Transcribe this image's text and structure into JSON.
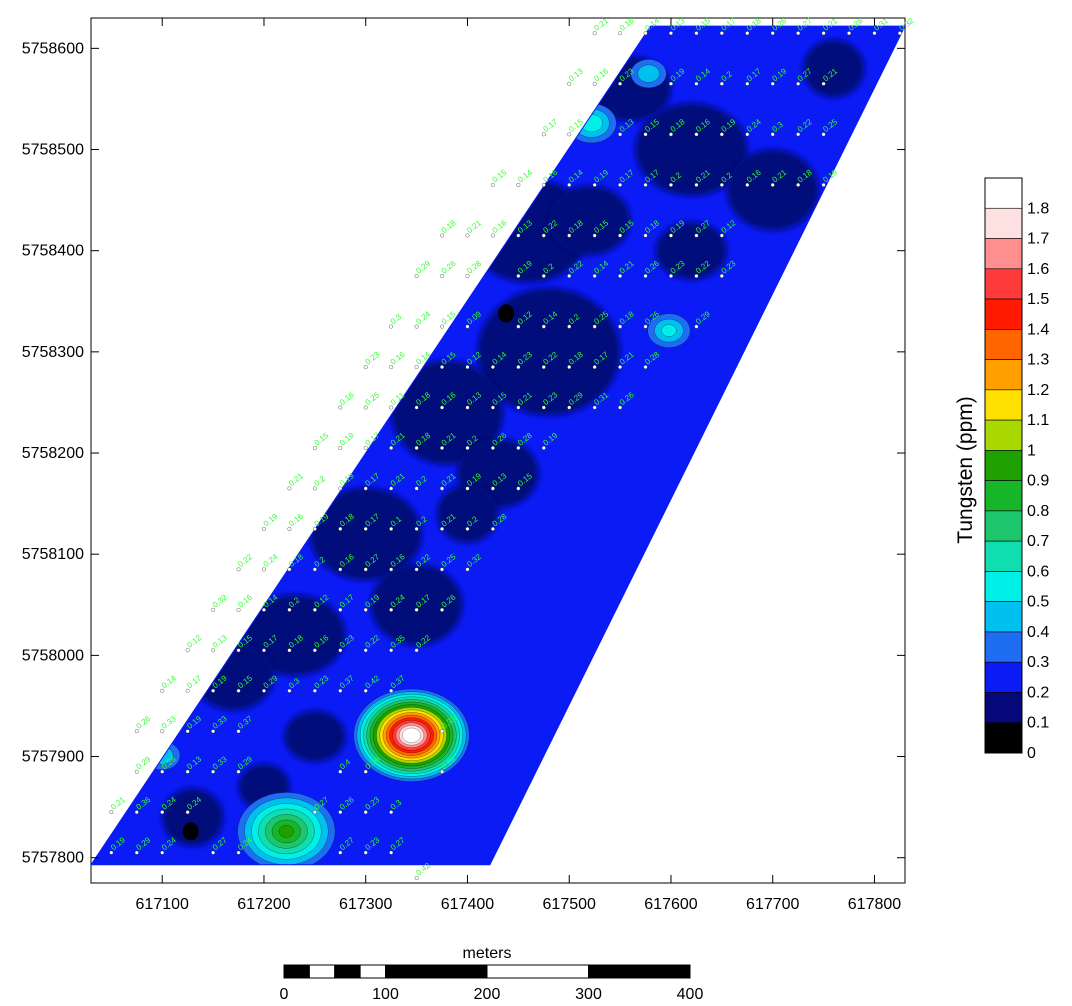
{
  "map": {
    "x_axis": {
      "ticks": [
        617100,
        617200,
        617300,
        617400,
        617500,
        617600,
        617700,
        617800
      ],
      "range": [
        617030,
        617830
      ]
    },
    "y_axis": {
      "ticks": [
        5757800,
        5757900,
        5758000,
        5758100,
        5758200,
        5758300,
        5758400,
        5758500,
        5758600
      ],
      "range": [
        5757775,
        5758630
      ]
    },
    "survey_corners": [
      [
        617030,
        5757793
      ],
      [
        617100,
        5757793
      ],
      [
        617422,
        5757793
      ],
      [
        617830,
        5758622
      ],
      [
        617580,
        5758622
      ]
    ],
    "anomalies": [
      {
        "x": 617345,
        "y": 5757921,
        "peak": 1.85
      },
      {
        "x": 617222,
        "y": 5757826,
        "peak": 0.9
      },
      {
        "x": 617522,
        "y": 5758526,
        "peak": 0.55
      },
      {
        "x": 617598,
        "y": 5758321,
        "peak": 0.5
      },
      {
        "x": 617578,
        "y": 5758575,
        "peak": 0.45
      },
      {
        "x": 617100,
        "y": 5757901,
        "peak": 0.45
      }
    ],
    "lows": [
      {
        "x": 617438,
        "y": 5758338
      },
      {
        "x": 617300,
        "y": 5758248
      },
      {
        "x": 617128,
        "y": 5757826
      }
    ],
    "sample_labels": [
      {
        "x": 617525,
        "y": 5758615,
        "v": "0.21"
      },
      {
        "x": 617550,
        "y": 5758615,
        "v": "0.16"
      },
      {
        "x": 617575,
        "y": 5758615,
        "v": "0.14"
      },
      {
        "x": 617600,
        "y": 5758615,
        "v": "0.13"
      },
      {
        "x": 617625,
        "y": 5758615,
        "v": "0.15"
      },
      {
        "x": 617650,
        "y": 5758615,
        "v": "0.17"
      },
      {
        "x": 617675,
        "y": 5758615,
        "v": "0.18"
      },
      {
        "x": 617700,
        "y": 5758615,
        "v": "0.26"
      },
      {
        "x": 617725,
        "y": 5758615,
        "v": "0.27"
      },
      {
        "x": 617750,
        "y": 5758615,
        "v": "0.21"
      },
      {
        "x": 617775,
        "y": 5758615,
        "v": "0.26"
      },
      {
        "x": 617800,
        "y": 5758615,
        "v": "0.31"
      },
      {
        "x": 617825,
        "y": 5758615,
        "v": "0.32"
      },
      {
        "x": 617500,
        "y": 5758565,
        "v": "0.13"
      },
      {
        "x": 617525,
        "y": 5758565,
        "v": "0.16"
      },
      {
        "x": 617550,
        "y": 5758565,
        "v": "0.23"
      },
      {
        "x": 617600,
        "y": 5758565,
        "v": "0.19"
      },
      {
        "x": 617625,
        "y": 5758565,
        "v": "0.14"
      },
      {
        "x": 617650,
        "y": 5758565,
        "v": "0.2"
      },
      {
        "x": 617675,
        "y": 5758565,
        "v": "0.17"
      },
      {
        "x": 617700,
        "y": 5758565,
        "v": "0.19"
      },
      {
        "x": 617725,
        "y": 5758565,
        "v": "0.27"
      },
      {
        "x": 617750,
        "y": 5758565,
        "v": "0.21"
      },
      {
        "x": 617475,
        "y": 5758515,
        "v": "0.17"
      },
      {
        "x": 617500,
        "y": 5758515,
        "v": "0.15"
      },
      {
        "x": 617550,
        "y": 5758515,
        "v": "0.13"
      },
      {
        "x": 617575,
        "y": 5758515,
        "v": "0.15"
      },
      {
        "x": 617600,
        "y": 5758515,
        "v": "0.18"
      },
      {
        "x": 617625,
        "y": 5758515,
        "v": "0.16"
      },
      {
        "x": 617650,
        "y": 5758515,
        "v": "0.19"
      },
      {
        "x": 617675,
        "y": 5758515,
        "v": "0.24"
      },
      {
        "x": 617700,
        "y": 5758515,
        "v": "0.3"
      },
      {
        "x": 617725,
        "y": 5758515,
        "v": "0.22"
      },
      {
        "x": 617750,
        "y": 5758515,
        "v": "0.25"
      },
      {
        "x": 617425,
        "y": 5758465,
        "v": "0.15"
      },
      {
        "x": 617450,
        "y": 5758465,
        "v": "0.14"
      },
      {
        "x": 617475,
        "y": 5758465,
        "v": "0.16"
      },
      {
        "x": 617500,
        "y": 5758465,
        "v": "0.14"
      },
      {
        "x": 617525,
        "y": 5758465,
        "v": "0.19"
      },
      {
        "x": 617550,
        "y": 5758465,
        "v": "0.17"
      },
      {
        "x": 617575,
        "y": 5758465,
        "v": "0.17"
      },
      {
        "x": 617600,
        "y": 5758465,
        "v": "0.2"
      },
      {
        "x": 617625,
        "y": 5758465,
        "v": "0.21"
      },
      {
        "x": 617650,
        "y": 5758465,
        "v": "0.2"
      },
      {
        "x": 617675,
        "y": 5758465,
        "v": "0.16"
      },
      {
        "x": 617700,
        "y": 5758465,
        "v": "0.21"
      },
      {
        "x": 617725,
        "y": 5758465,
        "v": "0.18"
      },
      {
        "x": 617750,
        "y": 5758465,
        "v": "0.19"
      },
      {
        "x": 617375,
        "y": 5758415,
        "v": "0.18"
      },
      {
        "x": 617400,
        "y": 5758415,
        "v": "0.21"
      },
      {
        "x": 617425,
        "y": 5758415,
        "v": "0.16"
      },
      {
        "x": 617450,
        "y": 5758415,
        "v": "0.13"
      },
      {
        "x": 617475,
        "y": 5758415,
        "v": "0.22"
      },
      {
        "x": 617500,
        "y": 5758415,
        "v": "0.18"
      },
      {
        "x": 617525,
        "y": 5758415,
        "v": "0.15"
      },
      {
        "x": 617550,
        "y": 5758415,
        "v": "0.15"
      },
      {
        "x": 617575,
        "y": 5758415,
        "v": "0.18"
      },
      {
        "x": 617600,
        "y": 5758415,
        "v": "0.19"
      },
      {
        "x": 617625,
        "y": 5758415,
        "v": "0.27"
      },
      {
        "x": 617650,
        "y": 5758415,
        "v": "0.12"
      },
      {
        "x": 617350,
        "y": 5758375,
        "v": "0.29"
      },
      {
        "x": 617375,
        "y": 5758375,
        "v": "0.26"
      },
      {
        "x": 617400,
        "y": 5758375,
        "v": "0.28"
      },
      {
        "x": 617450,
        "y": 5758375,
        "v": "0.19"
      },
      {
        "x": 617475,
        "y": 5758375,
        "v": "0.2"
      },
      {
        "x": 617500,
        "y": 5758375,
        "v": "0.22"
      },
      {
        "x": 617525,
        "y": 5758375,
        "v": "0.14"
      },
      {
        "x": 617550,
        "y": 5758375,
        "v": "0.21"
      },
      {
        "x": 617575,
        "y": 5758375,
        "v": "0.26"
      },
      {
        "x": 617600,
        "y": 5758375,
        "v": "0.23"
      },
      {
        "x": 617625,
        "y": 5758375,
        "v": "0.22"
      },
      {
        "x": 617650,
        "y": 5758375,
        "v": "0.23"
      },
      {
        "x": 617325,
        "y": 5758325,
        "v": "0.3"
      },
      {
        "x": 617350,
        "y": 5758325,
        "v": "0.24"
      },
      {
        "x": 617375,
        "y": 5758325,
        "v": "0.15"
      },
      {
        "x": 617400,
        "y": 5758325,
        "v": "0.09"
      },
      {
        "x": 617450,
        "y": 5758325,
        "v": "0.12"
      },
      {
        "x": 617475,
        "y": 5758325,
        "v": "0.14"
      },
      {
        "x": 617500,
        "y": 5758325,
        "v": "0.2"
      },
      {
        "x": 617525,
        "y": 5758325,
        "v": "0.25"
      },
      {
        "x": 617550,
        "y": 5758325,
        "v": "0.18"
      },
      {
        "x": 617575,
        "y": 5758325,
        "v": "0.26"
      },
      {
        "x": 617625,
        "y": 5758325,
        "v": "0.29"
      },
      {
        "x": 617300,
        "y": 5758285,
        "v": "0.23"
      },
      {
        "x": 617325,
        "y": 5758285,
        "v": "0.16"
      },
      {
        "x": 617350,
        "y": 5758285,
        "v": "0.14"
      },
      {
        "x": 617375,
        "y": 5758285,
        "v": "0.15"
      },
      {
        "x": 617400,
        "y": 5758285,
        "v": "0.12"
      },
      {
        "x": 617425,
        "y": 5758285,
        "v": "0.14"
      },
      {
        "x": 617450,
        "y": 5758285,
        "v": "0.23"
      },
      {
        "x": 617475,
        "y": 5758285,
        "v": "0.22"
      },
      {
        "x": 617500,
        "y": 5758285,
        "v": "0.18"
      },
      {
        "x": 617525,
        "y": 5758285,
        "v": "0.17"
      },
      {
        "x": 617550,
        "y": 5758285,
        "v": "0.21"
      },
      {
        "x": 617575,
        "y": 5758285,
        "v": "0.28"
      },
      {
        "x": 617275,
        "y": 5758245,
        "v": "0.16"
      },
      {
        "x": 617300,
        "y": 5758245,
        "v": "0.25"
      },
      {
        "x": 617325,
        "y": 5758245,
        "v": "0.11"
      },
      {
        "x": 617350,
        "y": 5758245,
        "v": "0.18"
      },
      {
        "x": 617375,
        "y": 5758245,
        "v": "0.16"
      },
      {
        "x": 617400,
        "y": 5758245,
        "v": "0.13"
      },
      {
        "x": 617425,
        "y": 5758245,
        "v": "0.15"
      },
      {
        "x": 617450,
        "y": 5758245,
        "v": "0.21"
      },
      {
        "x": 617475,
        "y": 5758245,
        "v": "0.23"
      },
      {
        "x": 617500,
        "y": 5758245,
        "v": "0.29"
      },
      {
        "x": 617525,
        "y": 5758245,
        "v": "0.31"
      },
      {
        "x": 617550,
        "y": 5758245,
        "v": "0.26"
      },
      {
        "x": 617250,
        "y": 5758205,
        "v": "0.15"
      },
      {
        "x": 617275,
        "y": 5758205,
        "v": "0.19"
      },
      {
        "x": 617300,
        "y": 5758205,
        "v": "0.17"
      },
      {
        "x": 617325,
        "y": 5758205,
        "v": "0.21"
      },
      {
        "x": 617350,
        "y": 5758205,
        "v": "0.18"
      },
      {
        "x": 617375,
        "y": 5758205,
        "v": "0.21"
      },
      {
        "x": 617400,
        "y": 5758205,
        "v": "0.2"
      },
      {
        "x": 617425,
        "y": 5758205,
        "v": "0.26"
      },
      {
        "x": 617450,
        "y": 5758205,
        "v": "0.28"
      },
      {
        "x": 617475,
        "y": 5758205,
        "v": "0.19"
      },
      {
        "x": 617225,
        "y": 5758165,
        "v": "0.21"
      },
      {
        "x": 617250,
        "y": 5758165,
        "v": "0.2"
      },
      {
        "x": 617275,
        "y": 5758165,
        "v": "0.19"
      },
      {
        "x": 617300,
        "y": 5758165,
        "v": "0.17"
      },
      {
        "x": 617325,
        "y": 5758165,
        "v": "0.21"
      },
      {
        "x": 617350,
        "y": 5758165,
        "v": "0.2"
      },
      {
        "x": 617375,
        "y": 5758165,
        "v": "0.21"
      },
      {
        "x": 617400,
        "y": 5758165,
        "v": "0.19"
      },
      {
        "x": 617425,
        "y": 5758165,
        "v": "0.13"
      },
      {
        "x": 617450,
        "y": 5758165,
        "v": "0.15"
      },
      {
        "x": 617200,
        "y": 5758125,
        "v": "0.19"
      },
      {
        "x": 617225,
        "y": 5758125,
        "v": "0.16"
      },
      {
        "x": 617250,
        "y": 5758125,
        "v": "0.19"
      },
      {
        "x": 617275,
        "y": 5758125,
        "v": "0.18"
      },
      {
        "x": 617300,
        "y": 5758125,
        "v": "0.17"
      },
      {
        "x": 617325,
        "y": 5758125,
        "v": "0.1"
      },
      {
        "x": 617350,
        "y": 5758125,
        "v": "0.2"
      },
      {
        "x": 617375,
        "y": 5758125,
        "v": "0.21"
      },
      {
        "x": 617400,
        "y": 5758125,
        "v": "0.2"
      },
      {
        "x": 617425,
        "y": 5758125,
        "v": "0.28"
      },
      {
        "x": 617175,
        "y": 5758085,
        "v": "0.22"
      },
      {
        "x": 617200,
        "y": 5758085,
        "v": "0.24"
      },
      {
        "x": 617225,
        "y": 5758085,
        "v": "0.18"
      },
      {
        "x": 617250,
        "y": 5758085,
        "v": "0.2"
      },
      {
        "x": 617275,
        "y": 5758085,
        "v": "0.16"
      },
      {
        "x": 617300,
        "y": 5758085,
        "v": "0.27"
      },
      {
        "x": 617325,
        "y": 5758085,
        "v": "0.16"
      },
      {
        "x": 617350,
        "y": 5758085,
        "v": "0.22"
      },
      {
        "x": 617375,
        "y": 5758085,
        "v": "0.25"
      },
      {
        "x": 617400,
        "y": 5758085,
        "v": "0.32"
      },
      {
        "x": 617150,
        "y": 5758045,
        "v": "0.32"
      },
      {
        "x": 617175,
        "y": 5758045,
        "v": "0.16"
      },
      {
        "x": 617200,
        "y": 5758045,
        "v": "0.14"
      },
      {
        "x": 617225,
        "y": 5758045,
        "v": "0.2"
      },
      {
        "x": 617250,
        "y": 5758045,
        "v": "0.12"
      },
      {
        "x": 617275,
        "y": 5758045,
        "v": "0.17"
      },
      {
        "x": 617300,
        "y": 5758045,
        "v": "0.19"
      },
      {
        "x": 617325,
        "y": 5758045,
        "v": "0.24"
      },
      {
        "x": 617350,
        "y": 5758045,
        "v": "0.17"
      },
      {
        "x": 617375,
        "y": 5758045,
        "v": "0.26"
      },
      {
        "x": 617125,
        "y": 5758005,
        "v": "0.12"
      },
      {
        "x": 617150,
        "y": 5758005,
        "v": "0.13"
      },
      {
        "x": 617175,
        "y": 5758005,
        "v": "0.15"
      },
      {
        "x": 617200,
        "y": 5758005,
        "v": "0.17"
      },
      {
        "x": 617225,
        "y": 5758005,
        "v": "0.18"
      },
      {
        "x": 617250,
        "y": 5758005,
        "v": "0.16"
      },
      {
        "x": 617275,
        "y": 5758005,
        "v": "0.23"
      },
      {
        "x": 617300,
        "y": 5758005,
        "v": "0.22"
      },
      {
        "x": 617325,
        "y": 5758005,
        "v": "0.35"
      },
      {
        "x": 617350,
        "y": 5758005,
        "v": "0.22"
      },
      {
        "x": 617100,
        "y": 5757965,
        "v": "0.14"
      },
      {
        "x": 617125,
        "y": 5757965,
        "v": "0.17"
      },
      {
        "x": 617150,
        "y": 5757965,
        "v": "0.19"
      },
      {
        "x": 617175,
        "y": 5757965,
        "v": "0.15"
      },
      {
        "x": 617200,
        "y": 5757965,
        "v": "0.29"
      },
      {
        "x": 617225,
        "y": 5757965,
        "v": "0.3"
      },
      {
        "x": 617250,
        "y": 5757965,
        "v": "0.23"
      },
      {
        "x": 617275,
        "y": 5757965,
        "v": "0.37"
      },
      {
        "x": 617300,
        "y": 5757965,
        "v": "0.42"
      },
      {
        "x": 617325,
        "y": 5757965,
        "v": "0.37"
      },
      {
        "x": 617075,
        "y": 5757925,
        "v": "0.26"
      },
      {
        "x": 617100,
        "y": 5757925,
        "v": "0.33"
      },
      {
        "x": 617125,
        "y": 5757925,
        "v": "0.19"
      },
      {
        "x": 617150,
        "y": 5757925,
        "v": "0.33"
      },
      {
        "x": 617175,
        "y": 5757925,
        "v": "0.37"
      },
      {
        "x": 617375,
        "y": 5757925,
        "v": "0.33"
      },
      {
        "x": 617075,
        "y": 5757885,
        "v": "0.29"
      },
      {
        "x": 617100,
        "y": 5757885,
        "v": "0.26"
      },
      {
        "x": 617125,
        "y": 5757885,
        "v": "0.13"
      },
      {
        "x": 617150,
        "y": 5757885,
        "v": "0.33"
      },
      {
        "x": 617175,
        "y": 5757885,
        "v": "0.29"
      },
      {
        "x": 617275,
        "y": 5757885,
        "v": "0.4"
      },
      {
        "x": 617300,
        "y": 5757885,
        "v": "0.36"
      },
      {
        "x": 617375,
        "y": 5757885,
        "v": "0.28"
      },
      {
        "x": 617050,
        "y": 5757845,
        "v": "0.21"
      },
      {
        "x": 617075,
        "y": 5757845,
        "v": "0.36"
      },
      {
        "x": 617100,
        "y": 5757845,
        "v": "0.24"
      },
      {
        "x": 617125,
        "y": 5757845,
        "v": "0.24"
      },
      {
        "x": 617250,
        "y": 5757845,
        "v": "0.27"
      },
      {
        "x": 617275,
        "y": 5757845,
        "v": "0.26"
      },
      {
        "x": 617300,
        "y": 5757845,
        "v": "0.23"
      },
      {
        "x": 617325,
        "y": 5757845,
        "v": "0.3"
      },
      {
        "x": 617050,
        "y": 5757805,
        "v": "0.19"
      },
      {
        "x": 617075,
        "y": 5757805,
        "v": "0.29"
      },
      {
        "x": 617100,
        "y": 5757805,
        "v": "0.24"
      },
      {
        "x": 617150,
        "y": 5757805,
        "v": "0.27"
      },
      {
        "x": 617175,
        "y": 5757805,
        "v": "0.24"
      },
      {
        "x": 617275,
        "y": 5757805,
        "v": "0.27"
      },
      {
        "x": 617300,
        "y": 5757805,
        "v": "0.23"
      },
      {
        "x": 617325,
        "y": 5757805,
        "v": "0.27"
      },
      {
        "x": 617350,
        "y": 5757780,
        "v": "0.42"
      }
    ]
  },
  "colorbar": {
    "title": "Tungsten (ppm)",
    "labels": [
      "1.8",
      "1.7",
      "1.6",
      "1.5",
      "1.4",
      "1.3",
      "1.2",
      "1.1",
      "1",
      "0.9",
      "0.8",
      "0.7",
      "0.6",
      "0.5",
      "0.4",
      "0.3",
      "0.2",
      "0.1",
      "0"
    ],
    "colors": [
      "#ffffff",
      "#fde0e0",
      "#ff8f8f",
      "#ff3a3a",
      "#ff1a00",
      "#ff6600",
      "#ff9f00",
      "#ffe000",
      "#a8d800",
      "#1fa000",
      "#16b52a",
      "#1dc56c",
      "#10ddb0",
      "#00f0e8",
      "#00c0f0",
      "#1f6ef2",
      "#0a1bf5",
      "#06087a",
      "#000000"
    ]
  },
  "scalebar": {
    "unit": "meters",
    "labels": [
      "0",
      "100",
      "200",
      "300",
      "400"
    ]
  }
}
